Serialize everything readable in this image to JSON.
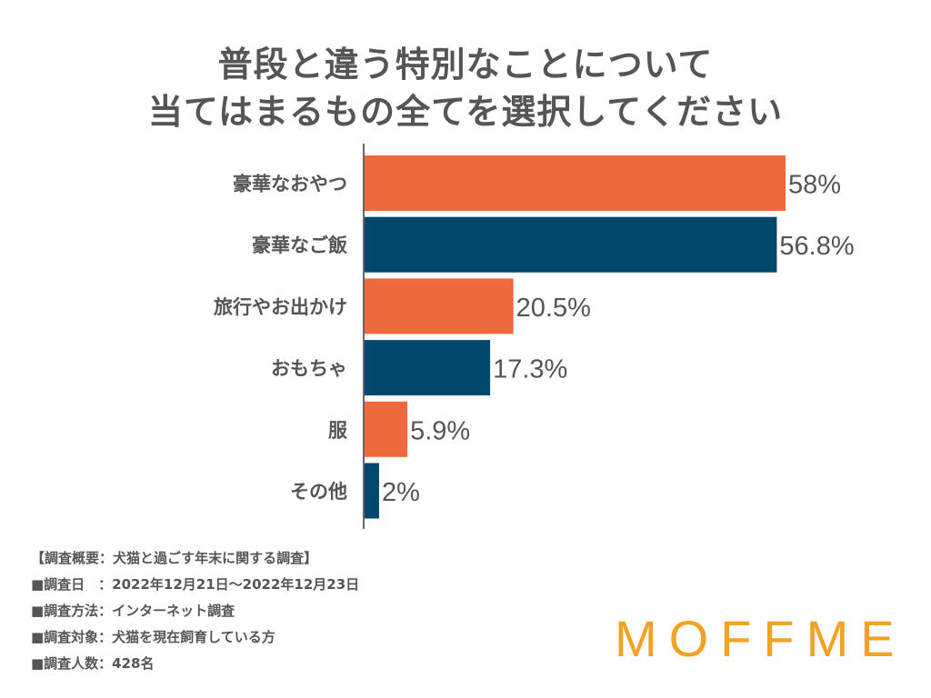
{
  "title": {
    "line1": "普段と違う特別なことについて",
    "line2": "当てはまるもの全てを選択してください"
  },
  "chart_data": {
    "type": "bar",
    "orientation": "horizontal",
    "categories": [
      "豪華なおやつ",
      "豪華なご飯",
      "旅行やお出かけ",
      "おもちゃ",
      "服",
      "その他"
    ],
    "values": [
      58,
      56.8,
      20.5,
      17.3,
      5.9,
      2
    ],
    "value_labels": [
      "58%",
      "56.8%",
      "20.5%",
      "17.3%",
      "5.9%",
      "2%"
    ],
    "bar_colors": [
      "#EE6A3C",
      "#00476C",
      "#EE6A3C",
      "#00476C",
      "#EE6A3C",
      "#00476C"
    ],
    "xlim": [
      0,
      60
    ],
    "grid": false,
    "legend": "none"
  },
  "notes": [
    "【調査概要：犬猫と過ごす年末に関する調査】",
    "■調査日　：2022年12月21日〜2022年12月23日",
    "■調査方法：インターネット調査",
    "■調査対象：犬猫を現在飼育している方",
    "■調査人数：428名"
  ],
  "logo": "MOFFME",
  "colors": {
    "orange": "#EE6A3C",
    "navy": "#00476C",
    "logo": "#F4A226",
    "text": "#555555"
  }
}
